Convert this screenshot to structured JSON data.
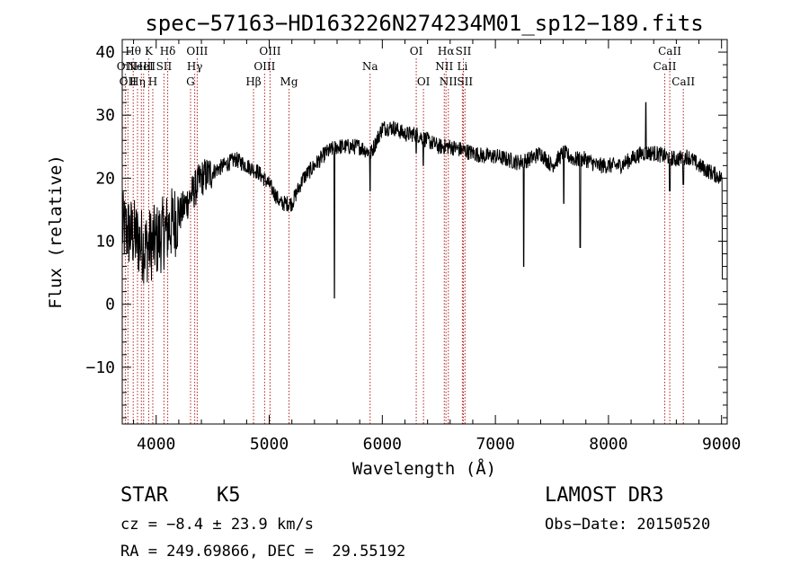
{
  "chart_data": {
    "type": "line",
    "title": "spec−57163−HD163226N274234M01_sp12−189.fits",
    "xlabel": "Wavelength (Å)",
    "ylabel": "Flux (relative)",
    "xlim": [
      3700,
      9050
    ],
    "ylim": [
      -19,
      42
    ],
    "x_ticks": [
      4000,
      5000,
      6000,
      7000,
      8000,
      9000
    ],
    "y_ticks": [
      -10,
      0,
      10,
      20,
      30,
      40
    ],
    "y_tick_labels": [
      "−10",
      "0",
      "10",
      "20",
      "30",
      "40"
    ],
    "line_color": "#000000",
    "marker_color": "#b22222",
    "continuum": [
      [
        3700,
        12
      ],
      [
        3800,
        11
      ],
      [
        3900,
        9
      ],
      [
        4000,
        10
      ],
      [
        4100,
        12
      ],
      [
        4200,
        14
      ],
      [
        4300,
        17
      ],
      [
        4400,
        20
      ],
      [
        4500,
        21
      ],
      [
        4600,
        22
      ],
      [
        4700,
        23
      ],
      [
        4800,
        22
      ],
      [
        4900,
        21
      ],
      [
        5000,
        19
      ],
      [
        5100,
        16
      ],
      [
        5200,
        16
      ],
      [
        5300,
        20
      ],
      [
        5400,
        22
      ],
      [
        5500,
        24
      ],
      [
        5600,
        25
      ],
      [
        5700,
        25
      ],
      [
        5800,
        25
      ],
      [
        5900,
        24
      ],
      [
        6000,
        28
      ],
      [
        6100,
        28
      ],
      [
        6200,
        27
      ],
      [
        6300,
        27
      ],
      [
        6400,
        26
      ],
      [
        6500,
        25
      ],
      [
        6600,
        25
      ],
      [
        6700,
        24.5
      ],
      [
        6800,
        24
      ],
      [
        6900,
        23.5
      ],
      [
        7000,
        23.5
      ],
      [
        7100,
        23
      ],
      [
        7200,
        22.5
      ],
      [
        7300,
        23
      ],
      [
        7400,
        24
      ],
      [
        7500,
        22
      ],
      [
        7600,
        24
      ],
      [
        7700,
        23
      ],
      [
        7800,
        23
      ],
      [
        7900,
        22
      ],
      [
        8000,
        22
      ],
      [
        8100,
        22
      ],
      [
        8200,
        23
      ],
      [
        8300,
        24
      ],
      [
        8400,
        24
      ],
      [
        8500,
        23.5
      ],
      [
        8600,
        23
      ],
      [
        8700,
        23.5
      ],
      [
        8800,
        22
      ],
      [
        8900,
        21
      ],
      [
        9000,
        20
      ]
    ],
    "features": [
      [
        5577,
        1
      ],
      [
        5892,
        18
      ],
      [
        6300,
        24
      ],
      [
        6363,
        22
      ],
      [
        7250,
        6
      ],
      [
        7605,
        16
      ],
      [
        7750,
        9
      ],
      [
        8330,
        32
      ],
      [
        8542,
        18
      ],
      [
        8662,
        19
      ],
      [
        9010,
        4
      ]
    ],
    "lines": [
      {
        "wl": 3727,
        "label": "OII",
        "row": 1
      },
      {
        "wl": 3750,
        "label": "OII",
        "row": 2
      },
      {
        "wl": 3797,
        "label": "Hθ",
        "row": 0
      },
      {
        "wl": 3835,
        "label": "Hη",
        "row": 2
      },
      {
        "wl": 3869,
        "label": "NeIII",
        "row": 1
      },
      {
        "wl": 3889,
        "label": "HeI",
        "row": 1
      },
      {
        "wl": 3934,
        "label": "K",
        "row": 0
      },
      {
        "wl": 3970,
        "label": "H",
        "row": 2
      },
      {
        "wl": 4069,
        "label": "SII",
        "row": 1
      },
      {
        "wl": 4102,
        "label": "Hδ",
        "row": 0
      },
      {
        "wl": 4304,
        "label": "G",
        "row": 2
      },
      {
        "wl": 4341,
        "label": "Hγ",
        "row": 1
      },
      {
        "wl": 4363,
        "label": "OIII",
        "row": 0
      },
      {
        "wl": 4861,
        "label": "Hβ",
        "row": 2
      },
      {
        "wl": 4959,
        "label": "OIII",
        "row": 1
      },
      {
        "wl": 5007,
        "label": "OIII",
        "row": 0
      },
      {
        "wl": 5175,
        "label": "Mg",
        "row": 2
      },
      {
        "wl": 5892,
        "label": "Na",
        "row": 1
      },
      {
        "wl": 6300,
        "label": "OI",
        "row": 0
      },
      {
        "wl": 6364,
        "label": "OI",
        "row": 2
      },
      {
        "wl": 6548,
        "label": "NII",
        "row": 1
      },
      {
        "wl": 6563,
        "label": "Hα",
        "row": 0
      },
      {
        "wl": 6584,
        "label": "NII",
        "row": 2
      },
      {
        "wl": 6708,
        "label": "Li",
        "row": 1
      },
      {
        "wl": 6717,
        "label": "SII",
        "row": 0
      },
      {
        "wl": 6731,
        "label": "SII",
        "row": 2
      },
      {
        "wl": 8498,
        "label": "CaII",
        "row": 1
      },
      {
        "wl": 8542,
        "label": "CaII",
        "row": 0
      },
      {
        "wl": 8662,
        "label": "CaII",
        "row": 2
      }
    ]
  },
  "info": {
    "class": "STAR",
    "subclass": "K5",
    "survey": "LAMOST DR3",
    "cz": "cz = −8.4 ± 23.9 km/s",
    "obsdate": "Obs−Date: 20150520",
    "radec": "RA = 249.69866, DEC =  29.55192"
  }
}
